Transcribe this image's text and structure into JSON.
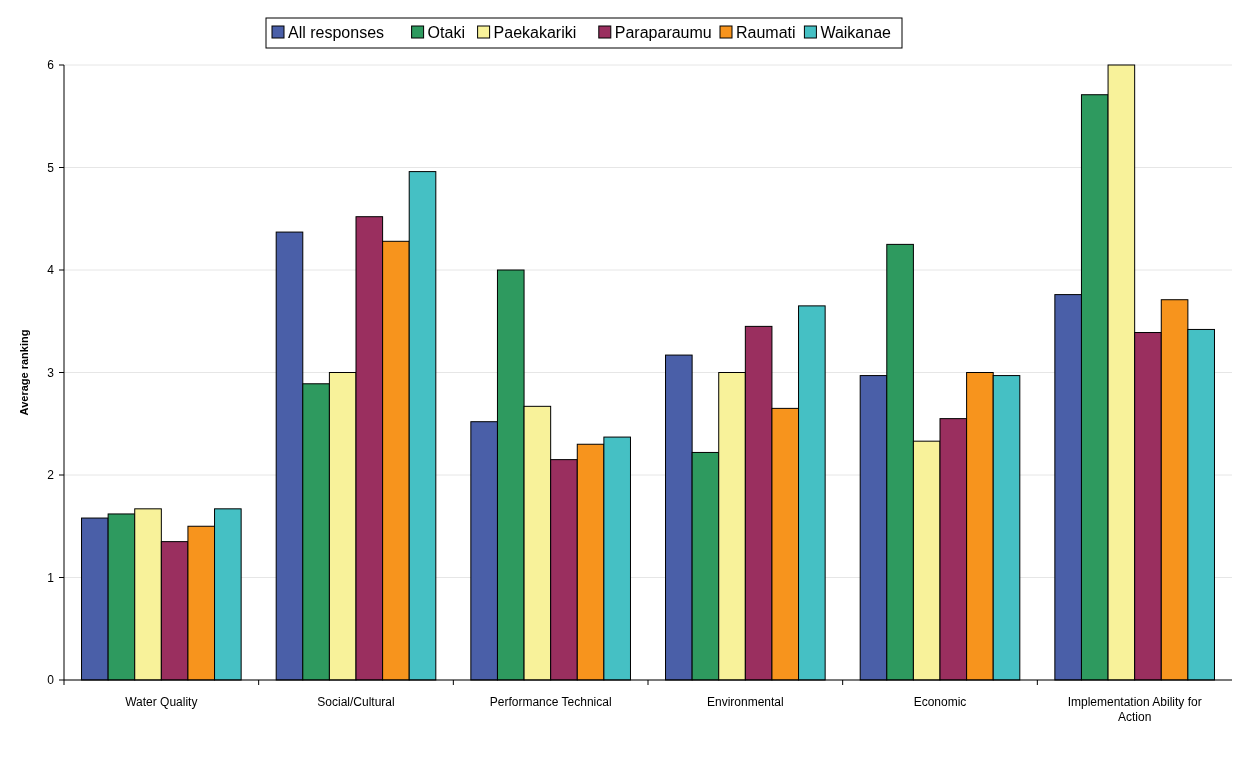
{
  "chart_data": {
    "type": "bar",
    "ylabel": "Average ranking",
    "categories": [
      "Water Quality",
      "Social/Cultural",
      "Performance Technical",
      "Environmental",
      "Economic",
      "Implementation Ability for Action"
    ],
    "series": [
      {
        "name": "All responses",
        "color": "#4a5fa8",
        "values": [
          1.58,
          4.37,
          2.52,
          3.17,
          2.97,
          3.76
        ]
      },
      {
        "name": "Otaki",
        "color": "#2e9a5f",
        "values": [
          1.62,
          2.89,
          4.0,
          2.22,
          4.25,
          5.71
        ]
      },
      {
        "name": "Paekakariki",
        "color": "#f8f29a",
        "values": [
          1.67,
          3.0,
          2.67,
          3.0,
          2.33,
          6.0
        ]
      },
      {
        "name": "Paraparaumu",
        "color": "#9a2f5f",
        "values": [
          1.35,
          4.52,
          2.15,
          3.45,
          2.55,
          3.39
        ]
      },
      {
        "name": "Raumati",
        "color": "#f7941d",
        "values": [
          1.5,
          4.28,
          2.3,
          2.65,
          3.0,
          3.71
        ]
      },
      {
        "name": "Waikanae",
        "color": "#45c0c4",
        "values": [
          1.67,
          4.96,
          2.37,
          3.65,
          2.97,
          3.42
        ]
      }
    ],
    "ylim": [
      0,
      6
    ],
    "yticks": [
      0,
      1,
      2,
      3,
      4,
      5,
      6
    ],
    "grid": "y",
    "legend": "top"
  }
}
